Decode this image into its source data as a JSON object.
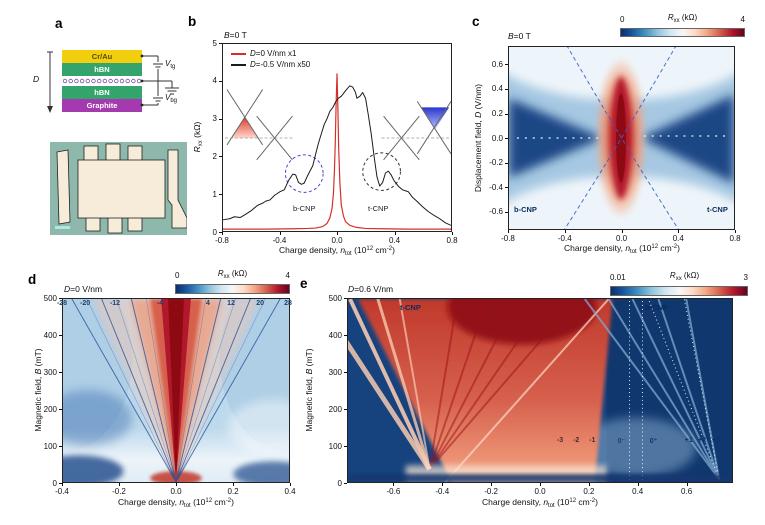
{
  "labels": {
    "xlabel": {
      "pre": "Charge density, ",
      "sym": "n",
      "sub": "tot",
      "mid": " (10",
      "exp": "12",
      "unit": " cm",
      "exp2": "-2",
      "post": ")"
    },
    "rxx": {
      "sym": "R",
      "sub": "xx",
      "post": " (kΩ)"
    },
    "displacement": {
      "pre": "Displacement field, ",
      "sym": "D",
      "post": " (V/nm)"
    },
    "magnetic": {
      "pre": "Magnetic field, ",
      "sym": "B",
      "post": " (mT)"
    }
  },
  "panels": {
    "a": {
      "letter": "a",
      "stack": {
        "crau": "Cr/Au",
        "hbn_top": "hBN",
        "hbn_bottom": "hBN",
        "graphite": "Graphite",
        "d_label": "D",
        "vtg": {
          "sym": "V",
          "sub": "tg"
        },
        "vbg": {
          "sym": "V",
          "sub": "bg"
        },
        "colors": {
          "crau": "#f2cf0e",
          "hbn": "#33a46c",
          "graphite": "#a53ab0"
        }
      }
    },
    "b": {
      "letter": "b",
      "title": {
        "sym": "B",
        "post": "=0 T"
      },
      "legend": [
        {
          "sym": "D",
          "post": "=0 V/nm x1"
        },
        {
          "sym": "D",
          "post": "=-0.5 V/nm x50"
        }
      ],
      "annotations": {
        "bcnp": "b-CNP",
        "tcnp": "t-CNP"
      }
    },
    "c": {
      "letter": "c",
      "title": {
        "sym": "B",
        "post": "=0 T"
      },
      "colorbar": {
        "min": "0",
        "max": "4"
      },
      "annotations": {
        "bcnp": "b-CNP",
        "tcnp": "t-CNP"
      }
    },
    "d": {
      "letter": "d",
      "title": {
        "sym": "D",
        "post": "=0 V/nm"
      },
      "colorbar": {
        "min": "0",
        "max": "4"
      }
    },
    "e": {
      "letter": "e",
      "title": {
        "sym": "D",
        "post": "=0.6 V/nm"
      },
      "colorbar": {
        "min": "0.01",
        "max": "3"
      },
      "annotations": {
        "tcnp": "t-CNP",
        "bcnp": "b-CNP"
      }
    }
  },
  "chart_data": [
    {
      "id": "b",
      "type": "line",
      "title": "B=0 T",
      "xlabel": "Charge density, n_tot (10^12 cm^-2)",
      "ylabel": "R_xx (kOhm)",
      "xlim": [
        -0.8,
        0.8
      ],
      "ylim": [
        0,
        5
      ],
      "xticks": [
        "-0.8",
        "-0.4",
        "0.0",
        "0.4",
        "0.8"
      ],
      "yticks": [
        "0",
        "1",
        "2",
        "3",
        "4",
        "5"
      ],
      "legend_position": "top-left",
      "series": [
        {
          "name": "D=0 V/nm x1",
          "color": "#d43028",
          "points": [
            [
              -0.8,
              0.05
            ],
            [
              -0.5,
              0.05
            ],
            [
              -0.3,
              0.06
            ],
            [
              -0.2,
              0.07
            ],
            [
              -0.15,
              0.08
            ],
            [
              -0.1,
              0.12
            ],
            [
              -0.07,
              0.2
            ],
            [
              -0.05,
              0.35
            ],
            [
              -0.035,
              0.6
            ],
            [
              -0.025,
              1.0
            ],
            [
              -0.018,
              1.6
            ],
            [
              -0.012,
              2.4
            ],
            [
              -0.006,
              3.4
            ],
            [
              0.0,
              4.2
            ],
            [
              0.006,
              3.3
            ],
            [
              0.012,
              2.2
            ],
            [
              0.02,
              1.3
            ],
            [
              0.03,
              0.7
            ],
            [
              0.045,
              0.4
            ],
            [
              0.06,
              0.25
            ],
            [
              0.09,
              0.15
            ],
            [
              0.13,
              0.1
            ],
            [
              0.2,
              0.07
            ],
            [
              0.3,
              0.06
            ],
            [
              0.5,
              0.05
            ],
            [
              0.8,
              0.05
            ]
          ]
        },
        {
          "name": "D=-0.5 V/nm x50",
          "color": "#1a1a1a",
          "points": [
            [
              -0.8,
              0.3
            ],
            [
              -0.75,
              0.33
            ],
            [
              -0.72,
              0.38
            ],
            [
              -0.68,
              0.36
            ],
            [
              -0.64,
              0.45
            ],
            [
              -0.6,
              0.55
            ],
            [
              -0.56,
              0.68
            ],
            [
              -0.52,
              0.75
            ],
            [
              -0.5,
              0.8
            ],
            [
              -0.47,
              0.83
            ],
            [
              -0.44,
              0.95
            ],
            [
              -0.42,
              1.0
            ],
            [
              -0.4,
              1.05
            ],
            [
              -0.37,
              1.1
            ],
            [
              -0.34,
              1.35
            ],
            [
              -0.31,
              1.52
            ],
            [
              -0.29,
              1.5
            ],
            [
              -0.27,
              1.3
            ],
            [
              -0.25,
              1.25
            ],
            [
              -0.23,
              1.28
            ],
            [
              -0.21,
              1.45
            ],
            [
              -0.19,
              1.6
            ],
            [
              -0.17,
              1.75
            ],
            [
              -0.15,
              2.05
            ],
            [
              -0.13,
              2.35
            ],
            [
              -0.11,
              2.6
            ],
            [
              -0.09,
              2.85
            ],
            [
              -0.07,
              3.0
            ],
            [
              -0.05,
              3.2
            ],
            [
              -0.03,
              3.3
            ],
            [
              -0.01,
              3.45
            ],
            [
              0.01,
              3.55
            ],
            [
              0.03,
              3.6
            ],
            [
              0.05,
              3.7
            ],
            [
              0.07,
              3.8
            ],
            [
              0.09,
              3.88
            ],
            [
              0.11,
              3.85
            ],
            [
              0.13,
              3.7
            ],
            [
              0.14,
              3.55
            ],
            [
              0.16,
              3.6
            ],
            [
              0.18,
              3.7
            ],
            [
              0.2,
              3.55
            ],
            [
              0.22,
              3.1
            ],
            [
              0.24,
              2.6
            ],
            [
              0.26,
              2.0
            ],
            [
              0.28,
              1.45
            ],
            [
              0.3,
              1.2
            ],
            [
              0.32,
              1.3
            ],
            [
              0.34,
              1.55
            ],
            [
              0.36,
              1.6
            ],
            [
              0.38,
              1.5
            ],
            [
              0.4,
              1.35
            ],
            [
              0.43,
              1.2
            ],
            [
              0.46,
              1.1
            ],
            [
              0.5,
              1.05
            ],
            [
              0.53,
              0.9
            ],
            [
              0.56,
              0.8
            ],
            [
              0.6,
              0.65
            ],
            [
              0.64,
              0.52
            ],
            [
              0.68,
              0.42
            ],
            [
              0.72,
              0.33
            ],
            [
              0.76,
              0.22
            ],
            [
              0.8,
              0.15
            ]
          ]
        }
      ],
      "annotations": [
        "b-CNP dip near n_tot=-0.25",
        "t-CNP dip near n_tot=+0.30"
      ]
    },
    {
      "id": "c",
      "type": "heatmap",
      "title": "B=0 T",
      "xlabel": "Charge density, n_tot (10^12 cm^-2)",
      "ylabel": "Displacement field, D (V/nm)",
      "colorbar": {
        "min": 0,
        "max": 4,
        "label": "R_xx (kOhm)"
      },
      "xlim": [
        -0.8,
        0.8
      ],
      "ylim": [
        -0.75,
        0.75
      ],
      "xticks": [
        "-0.8",
        "-0.4",
        "0.0",
        "0.4",
        "0.8"
      ],
      "yticks": [
        "0.6",
        "0.4",
        "0.2",
        "0.0",
        "-0.2",
        "-0.4",
        "-0.6"
      ],
      "features": [
        "high-Rxx red ridge along n_tot=0 spanning all D",
        "dark low-Rxx lobes at large |n_tot| near D=0",
        "dashed hyperbolic loci of b-CNP and t-CNP crossing at origin"
      ],
      "annotations": [
        "b-CNP",
        "t-CNP"
      ]
    },
    {
      "id": "d",
      "type": "heatmap",
      "title": "D=0 V/nm",
      "xlabel": "Charge density, n_tot (10^12 cm^-2)",
      "ylabel": "Magnetic field, B (mT)",
      "colorbar": {
        "min": 0,
        "max": 4,
        "label": "R_xx (kOhm)"
      },
      "xlim": [
        -0.4,
        0.4
      ],
      "ylim": [
        0,
        500
      ],
      "xticks": [
        "-0.4",
        "-0.2",
        "0.0",
        "0.2",
        "0.4"
      ],
      "yticks": [
        "0",
        "100",
        "200",
        "300",
        "400",
        "500"
      ],
      "features": [
        "Landau fan radiating from n_tot=0, B=0",
        "central high-Rxx red wedge",
        "quantum-Hall gap stripes labeled by filling factor"
      ],
      "fan_labels": [
        {
          "label": "-28",
          "n": -0.4
        },
        {
          "label": "-20",
          "n": -0.319
        },
        {
          "label": "-12",
          "n": -0.214
        },
        {
          "label": "-4",
          "n": -0.056
        },
        {
          "label": "4",
          "n": 0.112
        },
        {
          "label": "12",
          "n": 0.193
        },
        {
          "label": "20",
          "n": 0.295
        },
        {
          "label": "28",
          "n": 0.393
        }
      ]
    },
    {
      "id": "e",
      "type": "heatmap",
      "title": "D=0.6 V/nm",
      "xlabel": "Charge density, n_tot (10^12 cm^-2)",
      "ylabel": "Magnetic field, B (mT)",
      "colorbar": {
        "min": 0.01,
        "max": 3,
        "label": "R_xx (kOhm)"
      },
      "xlim": [
        -0.79,
        0.79
      ],
      "ylim": [
        0,
        500
      ],
      "xticks": [
        "-0.6",
        "-0.4",
        "-0.2",
        "0.0",
        "0.2",
        "0.4",
        "0.6"
      ],
      "yticks": [
        "0",
        "100",
        "200",
        "300",
        "400",
        "500"
      ],
      "features": [
        "broad high-Rxx red region with Landau fan from t-CNP near n_tot=-0.45",
        "dark low-Rxx region with dotted gap trajectories from b-CNP on right",
        "filling-factor labels along B~100 mT"
      ],
      "annotations": [
        "t-CNP",
        "b-CNP"
      ],
      "filling_labels": [
        {
          "label": "-3",
          "n": 0.082,
          "color": "#4b2e2e"
        },
        {
          "label": "-2",
          "n": 0.148,
          "color": "#4b2e2e"
        },
        {
          "label": "-1",
          "n": 0.214,
          "color": "#4b2e2e"
        },
        {
          "label": "0⁻",
          "n": 0.333,
          "color": "#1d3f6e"
        },
        {
          "label": "0⁺",
          "n": 0.465,
          "color": "#10336a"
        },
        {
          "label": "+1",
          "n": 0.609,
          "color": "#0e3166"
        },
        {
          "label": "+2",
          "n": 0.663,
          "color": "#0e3166"
        },
        {
          "label": "+3",
          "n": 0.72,
          "color": "#0e3166"
        }
      ]
    }
  ]
}
